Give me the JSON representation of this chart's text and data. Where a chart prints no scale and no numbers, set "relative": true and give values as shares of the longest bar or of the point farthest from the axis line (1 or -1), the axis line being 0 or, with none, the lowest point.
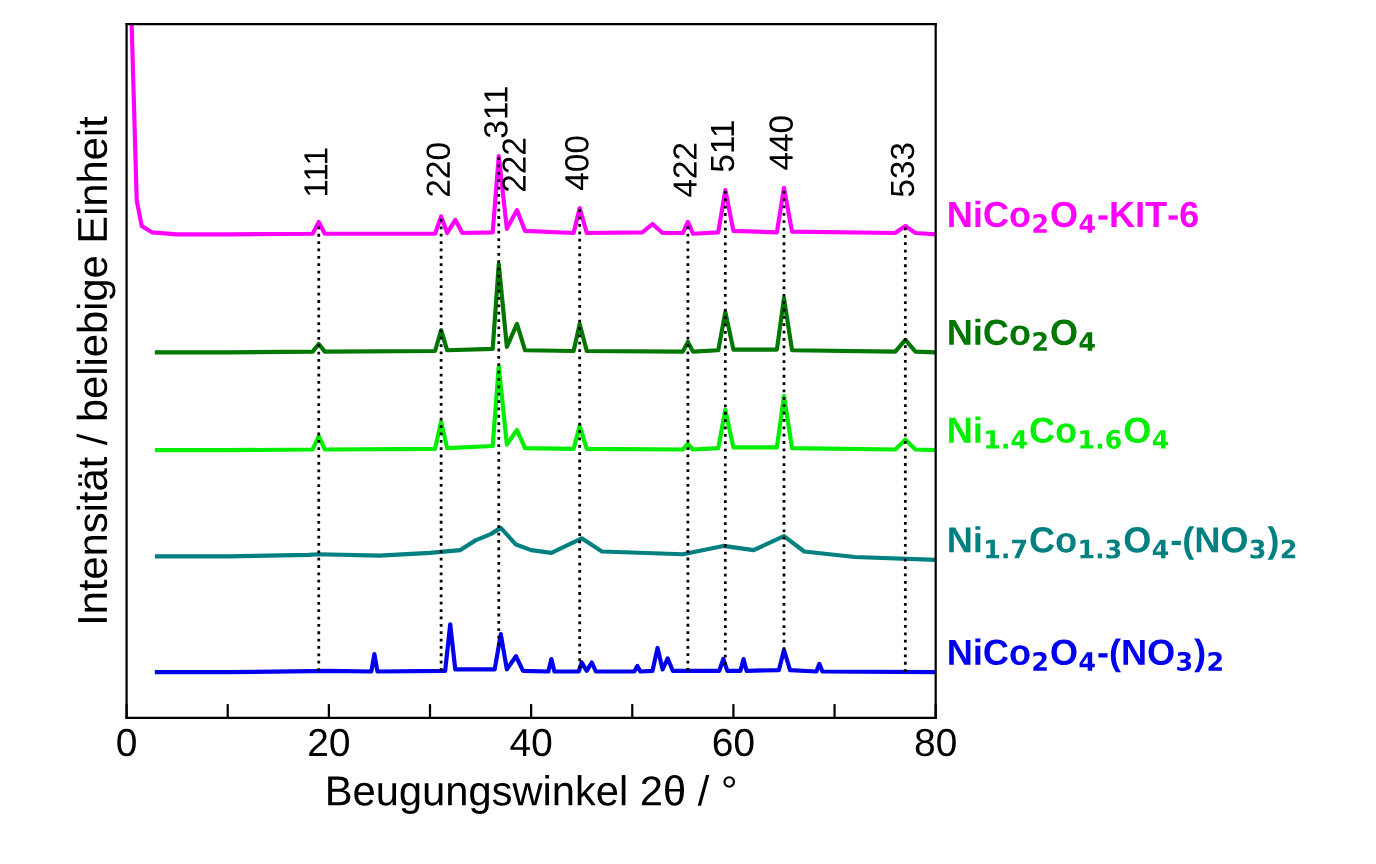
{
  "chart_data": {
    "type": "line",
    "relative": true,
    "xlabel": "Beugungswinkel 2θ / °",
    "ylabel": "Intensität / beliebige Einheit",
    "xlim": [
      0,
      80
    ],
    "xticks": [
      0,
      {
        "value": 10,
        "label": null
      },
      20,
      {
        "value": 30,
        "label": null
      },
      40,
      {
        "value": 50,
        "label": null
      },
      60,
      {
        "value": 70,
        "label": null
      },
      80
    ],
    "grid": false,
    "legend": false,
    "line_style": "solid",
    "marker": "none",
    "series": [
      {
        "name": "NiCo$_{2}$O$_{4}$-KIT-6",
        "color": "#ff00ff",
        "x": [
          0.5,
          1,
          1.5,
          2.5,
          5,
          10,
          18.4,
          19,
          19.6,
          30.5,
          31.1,
          31.7,
          32.5,
          33.2,
          36.2,
          36.8,
          37.6,
          38.6,
          39.4,
          44.2,
          44.8,
          45.5,
          51,
          52,
          53,
          55,
          55.5,
          56,
          58.5,
          59.2,
          60,
          64.3,
          65,
          65.8,
          76,
          77,
          78,
          80
        ],
        "values": [
          1,
          0.746,
          0.709,
          0.7,
          0.697,
          0.697,
          0.698,
          0.715,
          0.698,
          0.698,
          0.723,
          0.699,
          0.718,
          0.699,
          0.7,
          0.81,
          0.705,
          0.732,
          0.702,
          0.699,
          0.735,
          0.699,
          0.7,
          0.712,
          0.699,
          0.699,
          0.715,
          0.698,
          0.7,
          0.761,
          0.702,
          0.7,
          0.764,
          0.701,
          0.699,
          0.709,
          0.699,
          0.697
        ]
      },
      {
        "name": "NiCo$_{2}$O$_{4}$",
        "color": "#007700",
        "x": [
          3,
          10,
          18.4,
          19,
          19.6,
          30.5,
          31.1,
          31.7,
          36.2,
          36.8,
          37.6,
          38.6,
          39.4,
          44.2,
          44.8,
          45.5,
          55,
          55.5,
          56,
          58.5,
          59.2,
          60,
          64.3,
          65,
          65.8,
          76,
          77,
          78,
          80
        ],
        "values": [
          0.527,
          0.527,
          0.528,
          0.539,
          0.528,
          0.529,
          0.559,
          0.53,
          0.532,
          0.654,
          0.535,
          0.568,
          0.53,
          0.529,
          0.568,
          0.529,
          0.528,
          0.542,
          0.528,
          0.53,
          0.585,
          0.531,
          0.531,
          0.605,
          0.53,
          0.528,
          0.545,
          0.528,
          0.527
        ]
      },
      {
        "name": "Ni$_{1.4}$Co$_{1.6}$O$_{4}$",
        "color": "#00ee00",
        "x": [
          3,
          10,
          18.4,
          19,
          19.6,
          30.5,
          31.1,
          31.7,
          36.2,
          36.8,
          37.6,
          38.6,
          39.4,
          44.2,
          44.8,
          45.5,
          55,
          55.5,
          56,
          58.5,
          59.2,
          60,
          64.3,
          65,
          65.8,
          76,
          77,
          78,
          80
        ],
        "values": [
          0.386,
          0.386,
          0.387,
          0.406,
          0.387,
          0.388,
          0.427,
          0.389,
          0.392,
          0.507,
          0.394,
          0.415,
          0.389,
          0.388,
          0.421,
          0.388,
          0.387,
          0.395,
          0.387,
          0.389,
          0.444,
          0.39,
          0.39,
          0.464,
          0.389,
          0.387,
          0.401,
          0.387,
          0.386
        ]
      },
      {
        "name": "Ni$_{1.7}$Co$_{1.3}$O$_{4}$-(NO$_{3}$)$_{2}$",
        "color": "#008080",
        "x": [
          3,
          10,
          18,
          19,
          25,
          30,
          33,
          34.5,
          36,
          37,
          38.5,
          40,
          42,
          45,
          47,
          55,
          59,
          62,
          65,
          67,
          72,
          80
        ],
        "values": [
          0.233,
          0.233,
          0.235,
          0.236,
          0.234,
          0.238,
          0.242,
          0.256,
          0.265,
          0.274,
          0.25,
          0.242,
          0.238,
          0.259,
          0.24,
          0.236,
          0.248,
          0.242,
          0.262,
          0.24,
          0.232,
          0.228
        ]
      },
      {
        "name": "NiCo$_{2}$O$_{4}$-(NO$_{3}$)$_{2}$",
        "color": "#0000ee",
        "x": [
          3,
          10,
          20,
          24.2,
          24.5,
          24.8,
          31.5,
          32,
          32.5,
          36.4,
          37,
          37.6,
          38.5,
          39.2,
          41.7,
          42,
          42.3,
          44.7,
          45,
          45.5,
          46,
          46.4,
          50.2,
          50.5,
          50.8,
          52,
          52.5,
          53,
          53.5,
          54,
          58.6,
          59,
          59.4,
          60.7,
          61,
          61.3,
          64.5,
          65,
          65.6,
          68.2,
          68.5,
          68.8,
          80
        ],
        "values": [
          0.066,
          0.066,
          0.068,
          0.067,
          0.092,
          0.067,
          0.068,
          0.135,
          0.07,
          0.07,
          0.121,
          0.07,
          0.089,
          0.068,
          0.067,
          0.085,
          0.067,
          0.067,
          0.08,
          0.068,
          0.08,
          0.067,
          0.067,
          0.075,
          0.067,
          0.068,
          0.101,
          0.07,
          0.086,
          0.068,
          0.068,
          0.085,
          0.068,
          0.068,
          0.085,
          0.068,
          0.069,
          0.098,
          0.069,
          0.067,
          0.078,
          0.067,
          0.066
        ]
      }
    ],
    "ref_lines": [
      {
        "axis": "x",
        "value": 19,
        "color": "#000000",
        "line_style": "dotted"
      },
      {
        "axis": "x",
        "value": 31.1,
        "color": "#000000",
        "line_style": "dotted"
      },
      {
        "axis": "x",
        "value": 36.8,
        "color": "#000000",
        "line_style": "dotted"
      },
      {
        "axis": "x",
        "value": 44.8,
        "color": "#000000",
        "line_style": "dotted"
      },
      {
        "axis": "x",
        "value": 55.5,
        "color": "#000000",
        "line_style": "dotted"
      },
      {
        "axis": "x",
        "value": 59.2,
        "color": "#000000",
        "line_style": "dotted"
      },
      {
        "axis": "x",
        "value": 65,
        "color": "#000000",
        "line_style": "dotted"
      },
      {
        "axis": "x",
        "value": 77,
        "color": "#000000",
        "line_style": "dotted"
      }
    ],
    "annotations": [
      {
        "text": "111",
        "x": 19,
        "y": 0.715
      },
      {
        "text": "220",
        "x": 31.1,
        "y": 0.723
      },
      {
        "text": "311",
        "x": 36.8,
        "y": 0.81
      },
      {
        "text": "222",
        "x": 38.6,
        "y": 0.732
      },
      {
        "text": "400",
        "x": 44.8,
        "y": 0.735
      },
      {
        "text": "422",
        "x": 55.5,
        "y": 0.715
      },
      {
        "text": "511",
        "x": 59.2,
        "y": 0.761
      },
      {
        "text": "440",
        "x": 65,
        "y": 0.764
      },
      {
        "text": "533",
        "x": 77,
        "y": 0.709
      }
    ]
  }
}
